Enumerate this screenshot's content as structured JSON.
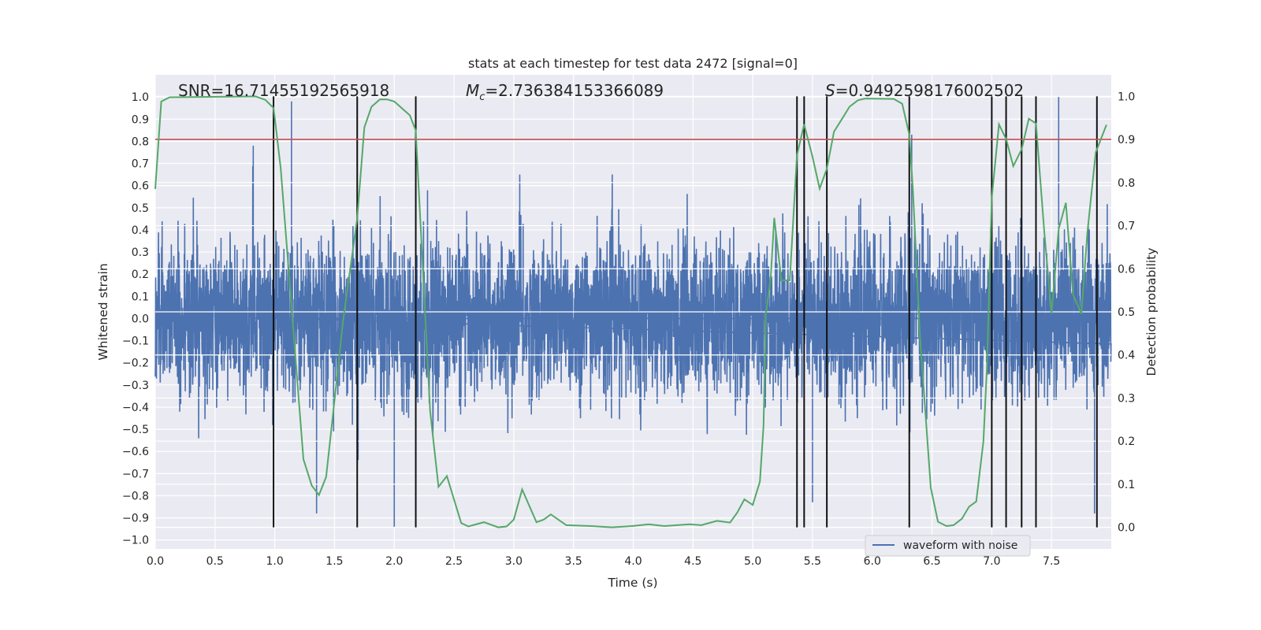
{
  "chart_data": {
    "type": "line",
    "title": "stats at each timestep for test data 2472 [signal=0]",
    "xlabel": "Time (s)",
    "ylabel": "Whitened strain",
    "ylabel_right": "Detection probability",
    "xlim": [
      0,
      8
    ],
    "ylim": [
      -1.04,
      1.1
    ],
    "ylim_right": [
      -0.05,
      1.05
    ],
    "grid": true,
    "x_ticks": [
      "0.0",
      "0.5",
      "1.0",
      "1.5",
      "2.0",
      "2.5",
      "3.0",
      "3.5",
      "4.0",
      "4.5",
      "5.0",
      "5.5",
      "6.0",
      "6.5",
      "7.0",
      "7.5"
    ],
    "y_ticks": [
      "1.0",
      "0.9",
      "0.8",
      "0.7",
      "0.6",
      "0.5",
      "0.4",
      "0.3",
      "0.2",
      "0.1",
      "0.0",
      "−0.1",
      "−0.2",
      "−0.3",
      "−0.4",
      "−0.5",
      "−0.6",
      "−0.7",
      "−0.8",
      "−0.9",
      "−1.0"
    ],
    "y_ticks_right": [
      "1.0",
      "0.9",
      "0.8",
      "0.7",
      "0.6",
      "0.5",
      "0.4",
      "0.3",
      "0.2",
      "0.1",
      "0.0"
    ],
    "annotations": {
      "snr": "SNR=16.71455192565918",
      "mc_symbol": "M",
      "mc_sub": "c",
      "mc_value": "=2.736384153366089",
      "s_symbol": "S",
      "s_value": "=0.9492598176002502"
    },
    "legend": {
      "position": "lower-right",
      "entries": [
        "waveform with noise"
      ]
    },
    "waveform": {
      "name": "waveform with noise",
      "color": "#4c72b0",
      "noise_std": 0.17,
      "duration_s": 8.0,
      "notable_spikes": [
        [
          1.14,
          0.98
        ],
        [
          7.56,
          1.0
        ],
        [
          6.33,
          0.83
        ],
        [
          2.0,
          -0.94
        ],
        [
          1.35,
          -0.88
        ],
        [
          5.5,
          -0.83
        ],
        [
          7.86,
          -0.88
        ],
        [
          0.82,
          0.78
        ],
        [
          3.05,
          0.65
        ]
      ]
    },
    "detection_probability": {
      "color": "#55a868",
      "t": [
        0.0,
        0.05,
        0.12,
        0.84,
        0.92,
        0.99,
        1.05,
        1.24,
        1.31,
        1.37,
        1.43,
        1.52,
        1.57,
        1.69,
        1.75,
        1.81,
        1.88,
        1.94,
        2.0,
        2.13,
        2.18,
        2.3,
        2.37,
        2.44,
        2.56,
        2.62,
        2.75,
        2.87,
        2.94,
        3.0,
        3.07,
        3.19,
        3.25,
        3.31,
        3.44,
        3.65,
        3.82,
        3.99,
        4.13,
        4.26,
        4.47,
        4.57,
        4.7,
        4.81,
        4.87,
        4.93,
        5.0,
        5.06,
        5.09,
        5.11,
        5.15,
        5.18,
        5.24,
        5.31,
        5.37,
        5.43,
        5.5,
        5.56,
        5.62,
        5.68,
        5.75,
        5.81,
        5.88,
        5.94,
        6.18,
        6.25,
        6.31,
        6.34,
        6.4,
        6.49,
        6.55,
        6.62,
        6.68,
        6.75,
        6.81,
        6.87,
        6.93,
        6.96,
        7.0,
        7.06,
        7.12,
        7.18,
        7.25,
        7.31,
        7.37,
        7.44,
        7.5,
        7.56,
        7.62,
        7.68,
        7.75,
        7.8,
        7.87,
        7.96
      ],
      "p": [
        0.785,
        0.988,
        0.998,
        1.0,
        0.992,
        0.973,
        0.833,
        0.158,
        0.097,
        0.075,
        0.117,
        0.346,
        0.476,
        0.716,
        0.928,
        0.976,
        0.993,
        0.993,
        0.988,
        0.956,
        0.921,
        0.271,
        0.094,
        0.119,
        0.01,
        0.002,
        0.012,
        0.0,
        0.002,
        0.018,
        0.088,
        0.012,
        0.018,
        0.03,
        0.005,
        0.003,
        0.0,
        0.003,
        0.007,
        0.003,
        0.007,
        0.005,
        0.015,
        0.011,
        0.034,
        0.065,
        0.052,
        0.106,
        0.236,
        0.496,
        0.579,
        0.718,
        0.573,
        0.573,
        0.863,
        0.935,
        0.86,
        0.786,
        0.832,
        0.918,
        0.949,
        0.976,
        0.991,
        0.995,
        0.994,
        0.983,
        0.911,
        0.784,
        0.44,
        0.092,
        0.013,
        0.003,
        0.005,
        0.02,
        0.048,
        0.06,
        0.2,
        0.373,
        0.764,
        0.935,
        0.901,
        0.838,
        0.877,
        0.948,
        0.937,
        0.684,
        0.496,
        0.692,
        0.753,
        0.54,
        0.496,
        0.684,
        0.87,
        0.934
      ]
    },
    "threshold": {
      "value": 0.9,
      "color": "#c44e52"
    },
    "trigger_times": [
      0.99,
      1.69,
      2.18,
      5.37,
      5.43,
      5.62,
      6.31,
      7.0,
      7.12,
      7.25,
      7.37,
      7.88
    ]
  }
}
